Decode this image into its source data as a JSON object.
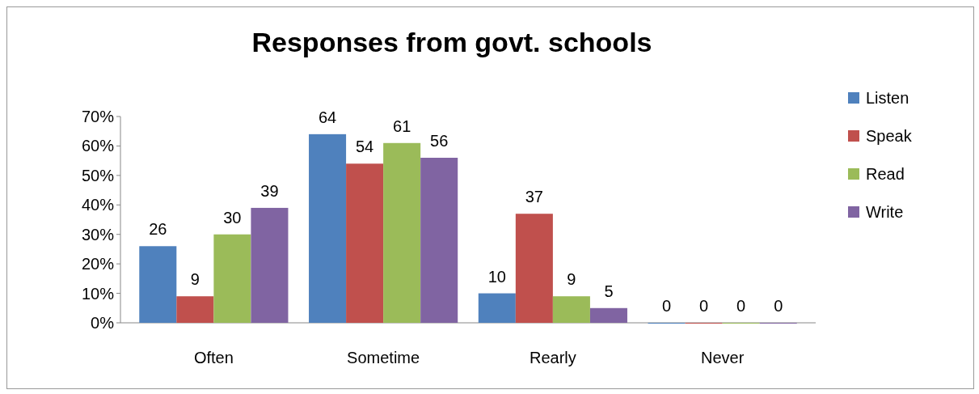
{
  "chart_data": {
    "type": "bar",
    "title": "Responses from govt. schools",
    "categories": [
      "Often",
      "Sometime",
      "Rearly",
      "Never"
    ],
    "series": [
      {
        "name": "Listen",
        "color": "#4f81bd",
        "values": [
          26,
          64,
          10,
          0
        ]
      },
      {
        "name": "Speak",
        "color": "#c0504d",
        "values": [
          9,
          54,
          37,
          0
        ]
      },
      {
        "name": "Read",
        "color": "#9bbb59",
        "values": [
          30,
          61,
          9,
          0
        ]
      },
      {
        "name": "Write",
        "color": "#8064a2",
        "values": [
          39,
          56,
          5,
          0
        ]
      }
    ],
    "ylim": [
      0,
      70
    ],
    "yticks": [
      {
        "value": 0,
        "label": "0%"
      },
      {
        "value": 10,
        "label": "10%"
      },
      {
        "value": 20,
        "label": "20%"
      },
      {
        "value": 30,
        "label": "30%"
      },
      {
        "value": 40,
        "label": "40%"
      },
      {
        "value": 50,
        "label": "50%"
      },
      {
        "value": 60,
        "label": "60%"
      },
      {
        "value": 70,
        "label": "70%"
      }
    ],
    "data_labels": true,
    "legend": "right",
    "grid": false
  }
}
